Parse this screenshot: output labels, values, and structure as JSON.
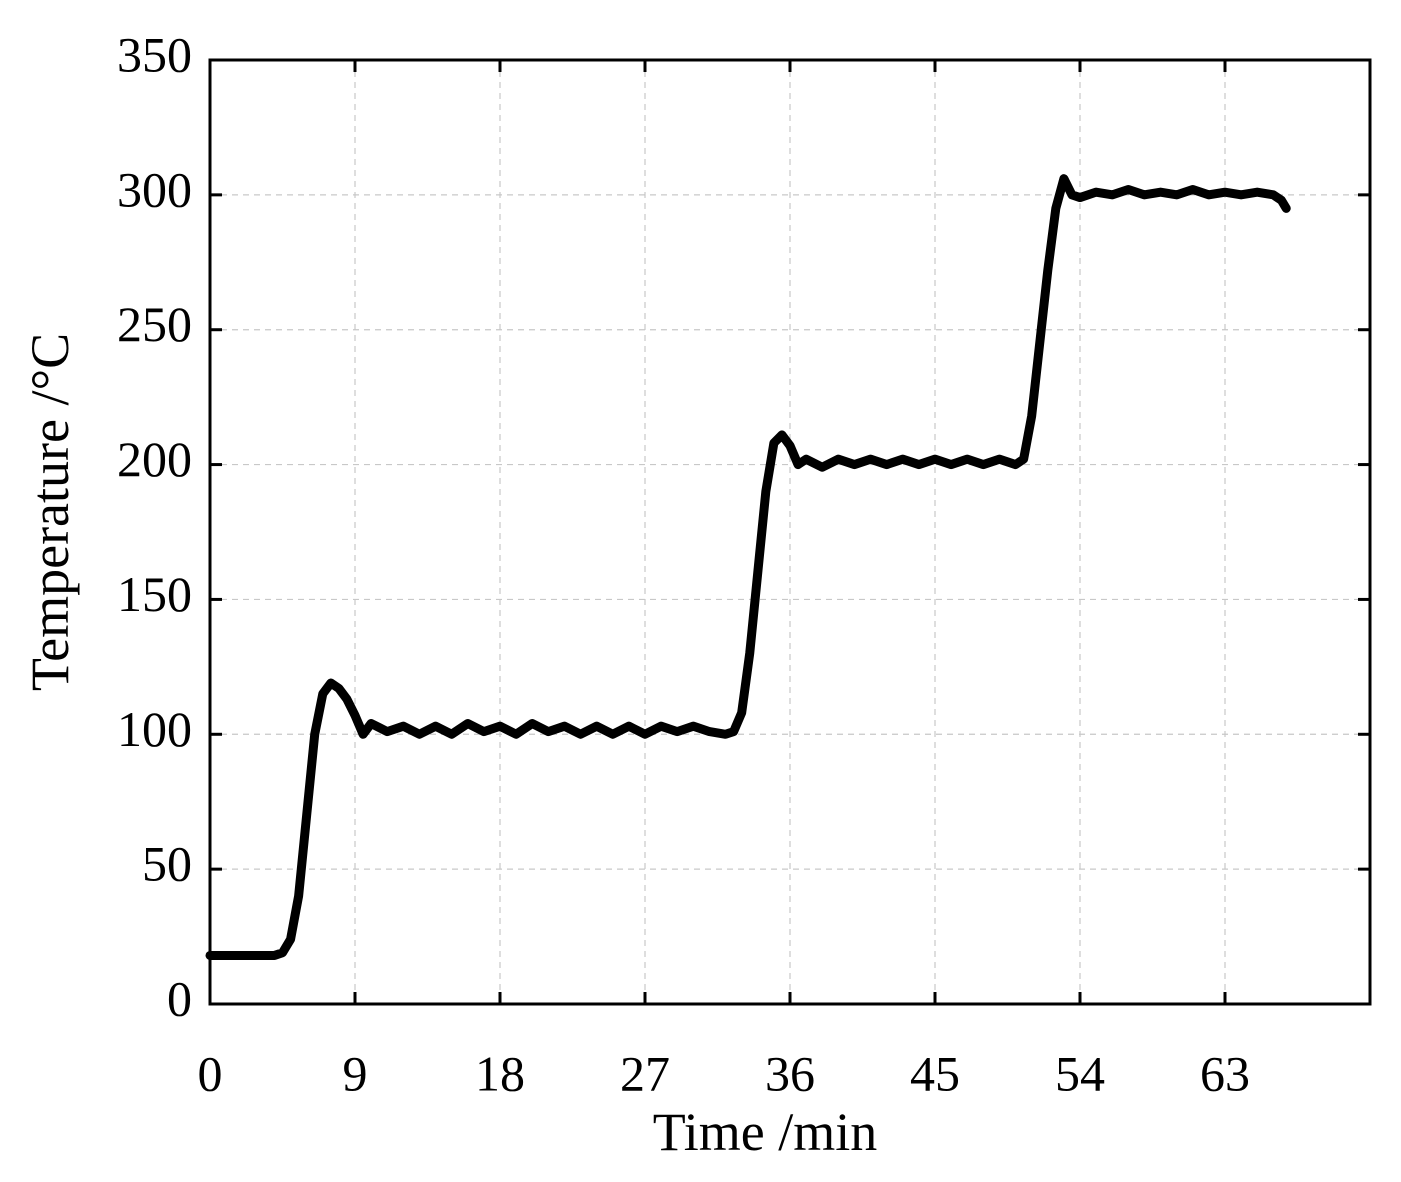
{
  "chart_data": {
    "type": "line",
    "xlabel": "Time /min",
    "ylabel": "Temperature /°C",
    "xlim": [
      0,
      72
    ],
    "xticks": [
      0,
      9,
      18,
      27,
      36,
      45,
      54,
      63
    ],
    "ylim": [
      0,
      350
    ],
    "yticks": [
      0,
      50,
      100,
      150,
      200,
      250,
      300,
      350
    ],
    "grid": true,
    "series": [
      {
        "color": "#000000",
        "x": [
          0,
          2,
          4,
          4.5,
          5,
          5.5,
          6,
          6.5,
          7,
          7.5,
          8,
          8.5,
          9,
          9.5,
          10,
          11,
          12,
          13,
          14,
          15,
          16,
          17,
          18,
          19,
          20,
          21,
          22,
          23,
          24,
          25,
          26,
          27,
          28,
          29,
          30,
          31,
          32,
          32.5,
          33,
          33.5,
          34,
          34.5,
          35,
          35.5,
          36,
          36.5,
          37,
          38,
          39,
          40,
          41,
          42,
          43,
          44,
          45,
          46,
          47,
          48,
          49,
          50,
          50.5,
          51,
          51.5,
          52,
          52.5,
          53,
          53.5,
          54,
          55,
          56,
          57,
          58,
          59,
          60,
          61,
          62,
          63,
          64,
          65,
          66,
          66.5,
          66.8
        ],
        "values": [
          18,
          18,
          18,
          19,
          24,
          40,
          70,
          100,
          115,
          119,
          117,
          113,
          107,
          100,
          104,
          101,
          103,
          100,
          103,
          100,
          104,
          101,
          103,
          100,
          104,
          101,
          103,
          100,
          103,
          100,
          103,
          100,
          103,
          101,
          103,
          101,
          100,
          101,
          108,
          130,
          160,
          190,
          208,
          211,
          207,
          200,
          202,
          199,
          202,
          200,
          202,
          200,
          202,
          200,
          202,
          200,
          202,
          200,
          202,
          200,
          202,
          218,
          245,
          272,
          295,
          306,
          300,
          299,
          301,
          300,
          302,
          300,
          301,
          300,
          302,
          300,
          301,
          300,
          301,
          300,
          298,
          295
        ]
      }
    ]
  }
}
